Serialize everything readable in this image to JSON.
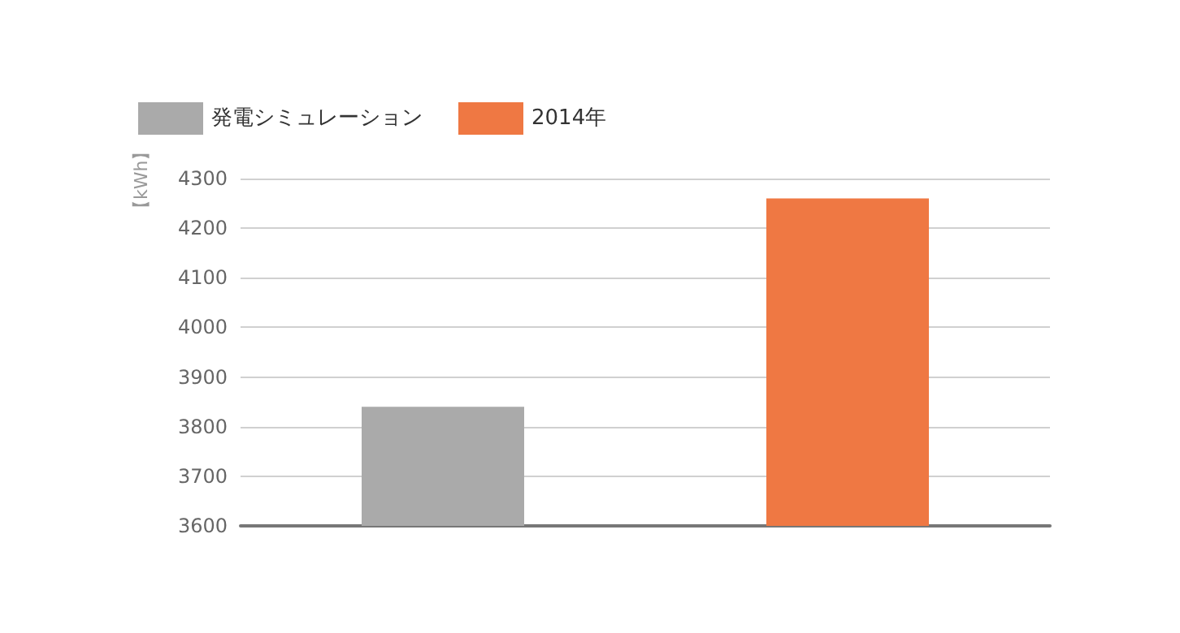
{
  "chart_data": {
    "type": "bar",
    "ylabel": "【kWh】",
    "categories": [
      null,
      null
    ],
    "series": [
      {
        "name": "発電シミュレーション",
        "color": "#aaaaaa",
        "values": [
          3840,
          null
        ]
      },
      {
        "name": "2014年",
        "color": "#ef7843",
        "values": [
          null,
          4260
        ]
      }
    ],
    "ylim": [
      3600,
      4300
    ],
    "yticks": [
      3600,
      3700,
      3800,
      3900,
      4000,
      4100,
      4200,
      4300
    ],
    "grid": "y",
    "legend": "top left"
  }
}
